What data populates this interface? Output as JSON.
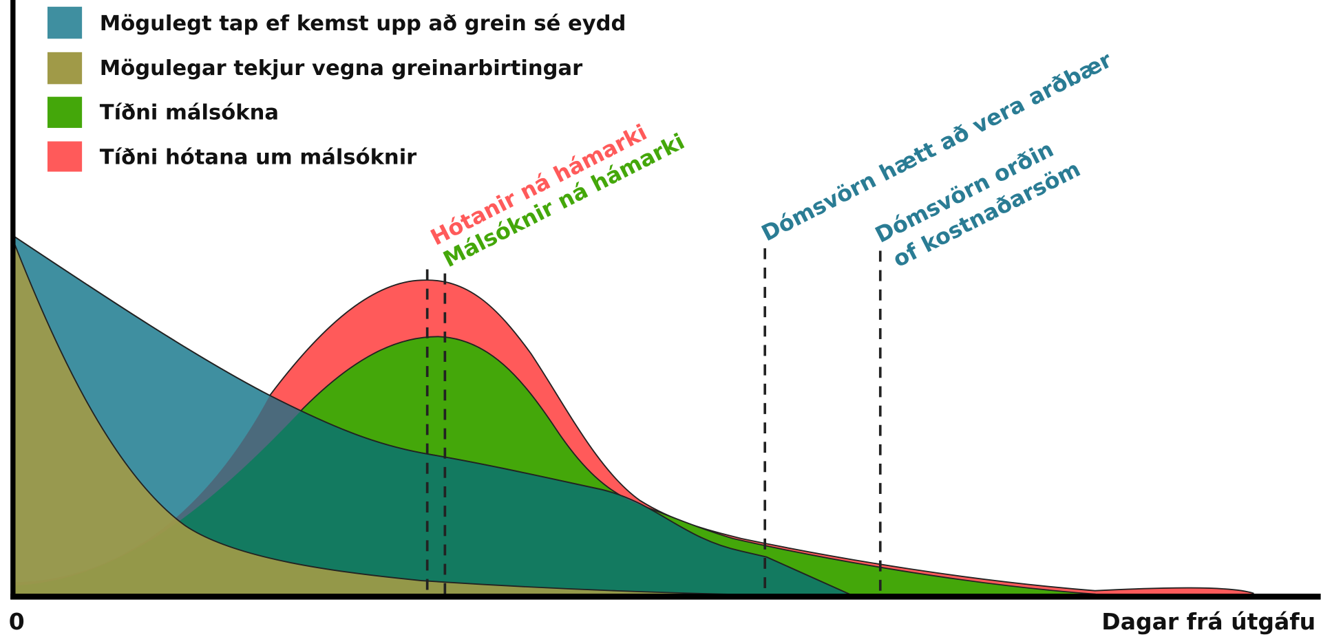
{
  "legend": [
    "Mögulegt tap ef kemst upp að grein sé eydd",
    "Mögulegar tekjur vegna greinarbirtingar",
    "Tíðni málsókna",
    "Tíðni hótana um málsóknir"
  ],
  "annotations": {
    "threats_peak": "Hótanir ná hámarki",
    "lawsuits_peak": "Málsóknir ná hámarki",
    "defense_unprofitable": "Dómsvörn hætt að vera arðbær",
    "defense_costly": [
      "Dómsvörn orðin",
      "of kostnaðarsöm"
    ]
  },
  "axis": {
    "origin": "0",
    "x_label": "Dagar frá útgáfu"
  }
}
